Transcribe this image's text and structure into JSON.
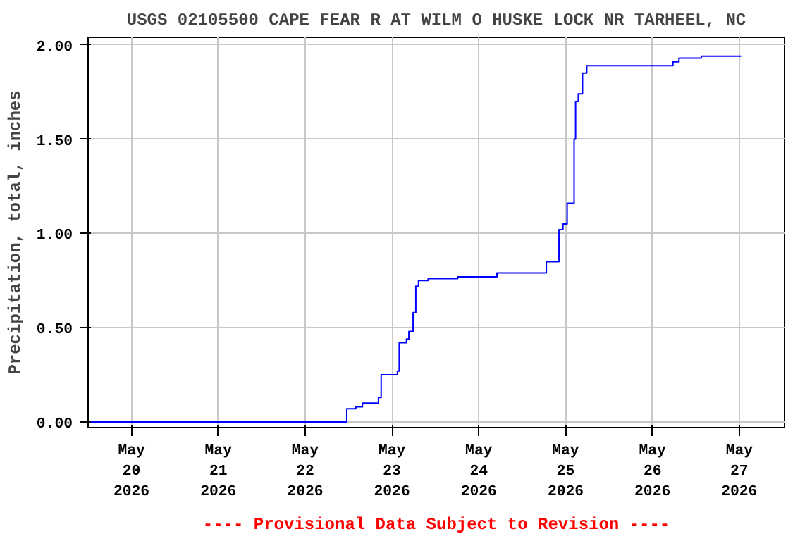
{
  "chart_data": {
    "type": "step",
    "title": "USGS 02105500 CAPE FEAR R AT WILM O HUSKE LOCK NR TARHEEL, NC",
    "ylabel": "Precipitation, total, inches",
    "annotations": [
      "---- Provisional Data Subject to Revision ----"
    ],
    "x": [
      "2026-05-19T12:00",
      "2026-05-22T11:30",
      "2026-05-22T14:00",
      "2026-05-22T15:50",
      "2026-05-22T20:15",
      "2026-05-22T21:00",
      "2026-05-23T01:30",
      "2026-05-23T02:00",
      "2026-05-23T04:00",
      "2026-05-23T04:40",
      "2026-05-23T05:50",
      "2026-05-23T06:35",
      "2026-05-23T07:20",
      "2026-05-23T10:00",
      "2026-05-23T18:10",
      "2026-05-24T05:00",
      "2026-05-24T18:40",
      "2026-05-24T22:10",
      "2026-05-24T23:15",
      "2026-05-25T00:25",
      "2026-05-25T02:20",
      "2026-05-25T02:45",
      "2026-05-25T03:30",
      "2026-05-25T04:40",
      "2026-05-25T05:50",
      "2026-05-26T05:40",
      "2026-05-26T07:20",
      "2026-05-26T13:30",
      "2026-05-27T00:30"
    ],
    "series": [
      {
        "color": "#0000ff",
        "values": [
          0,
          0.07,
          0.08,
          0.1,
          0.13,
          0.25,
          0.27,
          0.42,
          0.44,
          0.48,
          0.58,
          0.72,
          0.75,
          0.76,
          0.77,
          0.79,
          0.85,
          1.02,
          1.05,
          1.16,
          1.5,
          1.7,
          1.74,
          1.85,
          1.89,
          1.91,
          1.93,
          1.94,
          1.94
        ]
      }
    ],
    "xlim": [
      "2026-05-19T12:00",
      "2026-05-27T12:30"
    ],
    "xticks": [
      {
        "value": "2026-05-20",
        "label": "May\n20\n2026"
      },
      {
        "value": "2026-05-21",
        "label": "May\n21\n2026"
      },
      {
        "value": "2026-05-22",
        "label": "May\n22\n2026"
      },
      {
        "value": "2026-05-23",
        "label": "May\n23\n2026"
      },
      {
        "value": "2026-05-24",
        "label": "May\n24\n2026"
      },
      {
        "value": "2026-05-25",
        "label": "May\n25\n2026"
      },
      {
        "value": "2026-05-26",
        "label": "May\n26\n2026"
      },
      {
        "value": "2026-05-27",
        "label": "May\n27\n2026"
      }
    ],
    "ylim": [
      -0.03,
      2.04
    ],
    "yticks": [
      {
        "value": 0,
        "label": "0.00"
      },
      {
        "value": 0.5,
        "label": "0.50"
      },
      {
        "value": 1,
        "label": "1.00"
      },
      {
        "value": 1.5,
        "label": "1.50"
      },
      {
        "value": 2,
        "label": "2.00"
      }
    ],
    "grid": true,
    "line_style": "solid"
  }
}
